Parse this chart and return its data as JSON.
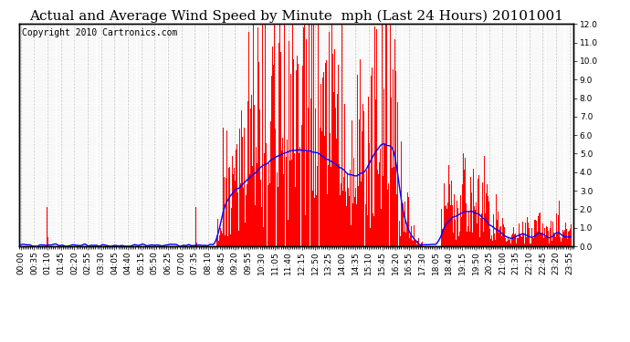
{
  "title": "Actual and Average Wind Speed by Minute  mph (Last 24 Hours) 20101001",
  "copyright": "Copyright 2010 Cartronics.com",
  "ylim": [
    0.0,
    12.0
  ],
  "yticks": [
    0.0,
    1.0,
    2.0,
    3.0,
    4.0,
    5.0,
    6.0,
    7.0,
    8.0,
    9.0,
    10.0,
    11.0,
    12.0
  ],
  "bar_color": "#ff0000",
  "line_color": "#0000ff",
  "background_color": "#ffffff",
  "grid_color": "#bbbbbb",
  "title_fontsize": 11,
  "copyright_fontsize": 7,
  "tick_fontsize": 6.5,
  "label_interval": 35
}
